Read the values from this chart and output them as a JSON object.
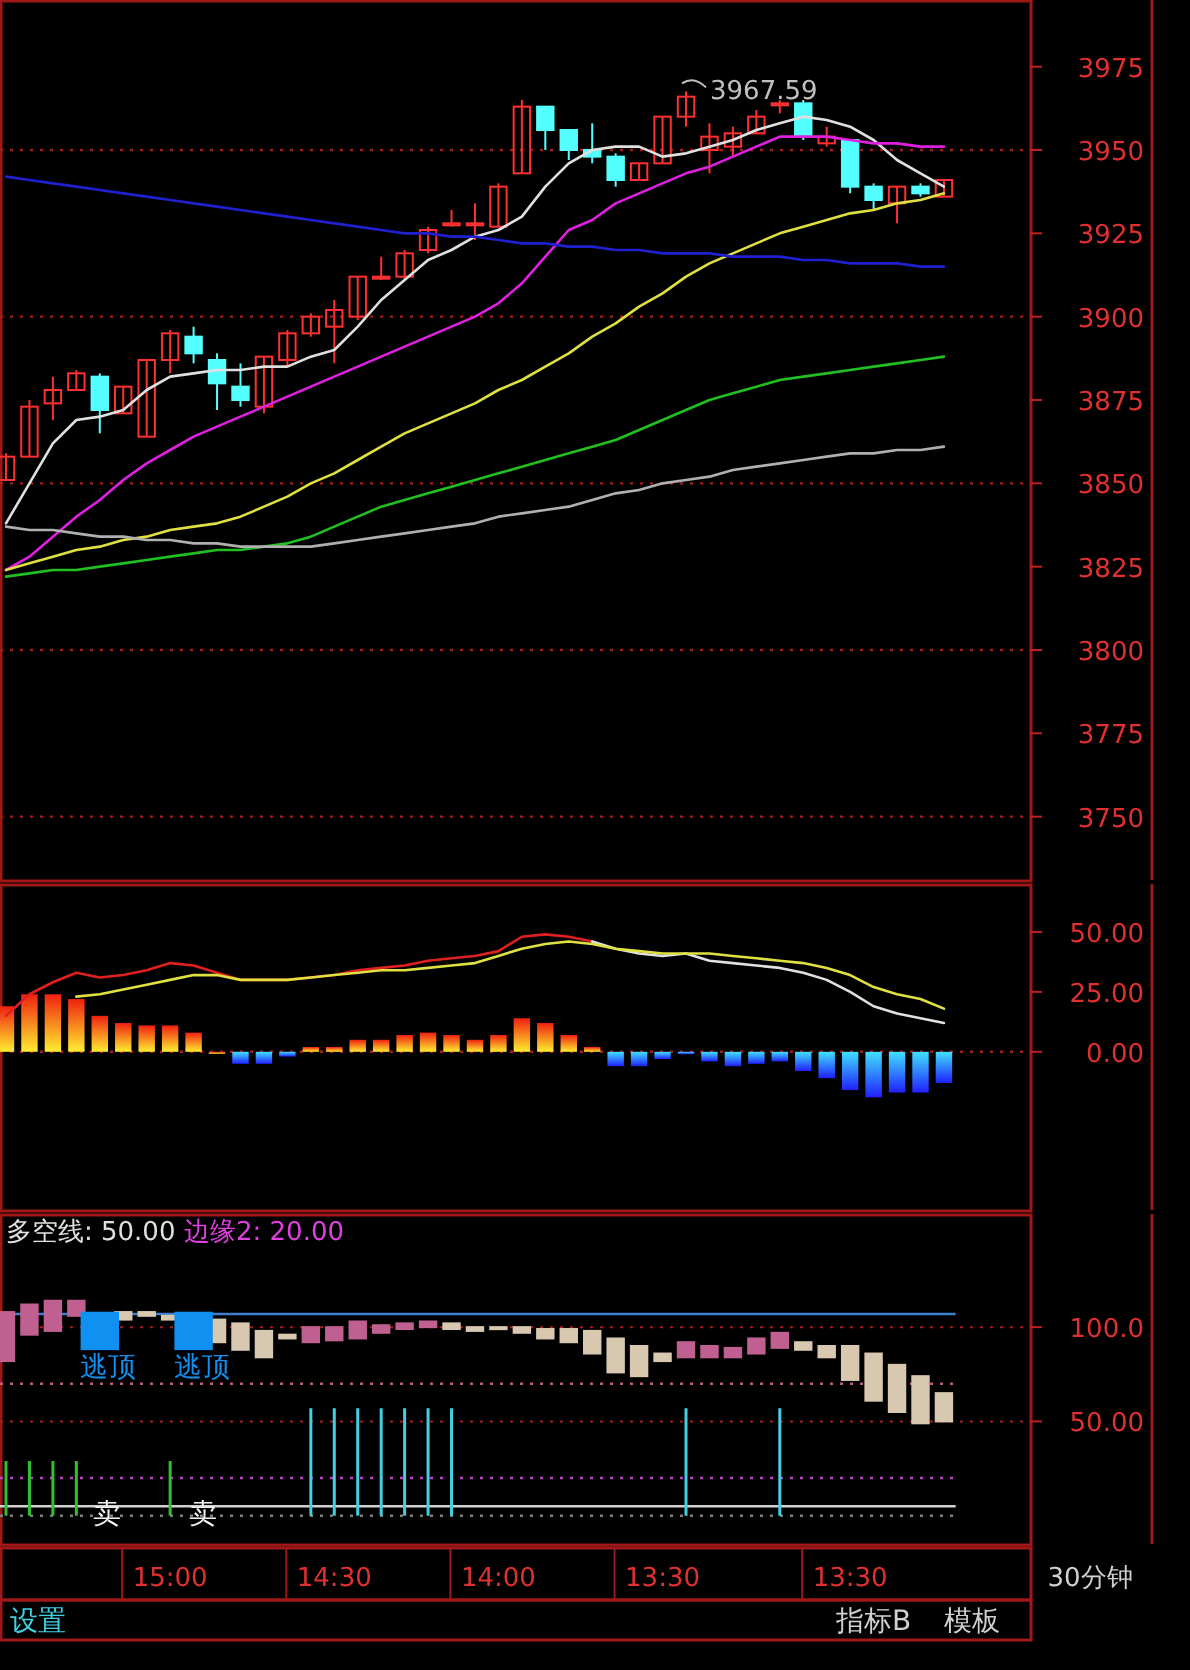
{
  "chart_data": [
    {
      "type": "candlestick",
      "tick_labels": "y",
      "grid": false,
      "categories": [
        null,
        null,
        null,
        null,
        null,
        null,
        null,
        null,
        null,
        null,
        null,
        null,
        null,
        null,
        null,
        null,
        null,
        null,
        null,
        null,
        null,
        null,
        null,
        null,
        null,
        null,
        null,
        null,
        null,
        null,
        null,
        null,
        null,
        null,
        null,
        null,
        null,
        null,
        null,
        null,
        null
      ],
      "ohlc": [
        [
          3851,
          3859,
          3851,
          3858
        ],
        [
          3858,
          3875,
          3858,
          3873
        ],
        [
          3874,
          3882,
          3869,
          3878
        ],
        [
          3878,
          3884,
          3878,
          3883
        ],
        [
          3882,
          3883,
          3865,
          3872
        ],
        [
          3871,
          3879,
          3871,
          3879
        ],
        [
          3864,
          3887,
          3864,
          3887
        ],
        [
          3887,
          3896,
          3883,
          3895
        ],
        [
          3894,
          3897,
          3886,
          3889
        ],
        [
          3887,
          3889,
          3872,
          3880
        ],
        [
          3879,
          3886,
          3873,
          3875
        ],
        [
          3873,
          3888,
          3871,
          3888
        ],
        [
          3887,
          3896,
          3885,
          3895
        ],
        [
          3895,
          3901,
          3894,
          3900
        ],
        [
          3897,
          3905,
          3886,
          3902
        ],
        [
          3900,
          3912,
          3899,
          3912
        ],
        [
          3912,
          3918,
          3911,
          3912
        ],
        [
          3912,
          3920,
          3911,
          3919
        ],
        [
          3920,
          3927,
          3919,
          3926
        ],
        [
          3928,
          3932,
          3927,
          3928
        ],
        [
          3928,
          3934,
          3923,
          3928
        ],
        [
          3927,
          3940,
          3927,
          3939
        ],
        [
          3943,
          3965,
          3943,
          3963
        ],
        [
          3963,
          3963,
          3950,
          3956
        ],
        [
          3956,
          3956,
          3947,
          3950
        ],
        [
          3950,
          3958,
          3946,
          3948
        ],
        [
          3948,
          3949,
          3939,
          3941
        ],
        [
          3941,
          3946,
          3941,
          3946
        ],
        [
          3946,
          3960,
          3946,
          3960
        ],
        [
          3960,
          3967.59,
          3957,
          3966
        ],
        [
          3950,
          3958,
          3943,
          3954
        ],
        [
          3951,
          3957,
          3948,
          3955
        ],
        [
          3955,
          3962,
          3955,
          3960
        ],
        [
          3964,
          3965,
          3961,
          3964
        ],
        [
          3964,
          3965,
          3953,
          3954
        ],
        [
          3952,
          3957,
          3951,
          3954
        ],
        [
          3953,
          3953,
          3937,
          3939
        ],
        [
          3939,
          3940,
          3932,
          3935
        ],
        [
          3934,
          3939,
          3928,
          3939
        ],
        [
          3939,
          3940,
          3936,
          3937
        ],
        [
          3936,
          3941,
          3936,
          3941
        ]
      ],
      "series": [
        {
          "type": "line",
          "color": "#e0e0e0",
          "values": [
            3838,
            3850,
            3862,
            3869,
            3870,
            3872,
            3878,
            3882,
            3883,
            3884,
            3884,
            3885,
            3885,
            3888,
            3890,
            3897,
            3905,
            3911,
            3917,
            3920,
            3924,
            3926,
            3930,
            3939,
            3946,
            3950,
            3951,
            3951,
            3948,
            3949,
            3951,
            3953,
            3956,
            3958,
            3960,
            3959,
            3957,
            3953,
            3947,
            3943,
            3939
          ]
        },
        {
          "type": "line",
          "color": "#e020e0",
          "values": [
            3824,
            3828,
            3834,
            3840,
            3845,
            3851,
            3856,
            3860,
            3864,
            3867,
            3870,
            3873,
            3876,
            3879,
            3882,
            3885,
            3888,
            3891,
            3894,
            3897,
            3900,
            3904,
            3910,
            3918,
            3926,
            3929,
            3934,
            3937,
            3940,
            3943,
            3945,
            3948,
            3951,
            3954,
            3954,
            3954,
            3953,
            3952,
            3952,
            3951,
            3951
          ]
        },
        {
          "type": "line",
          "color": "#e0e040",
          "values": [
            3824,
            3826,
            3828,
            3830,
            3831,
            3833,
            3834,
            3836,
            3837,
            3838,
            3840,
            3843,
            3846,
            3850,
            3853,
            3857,
            3861,
            3865,
            3868,
            3871,
            3874,
            3878,
            3881,
            3885,
            3889,
            3894,
            3898,
            3903,
            3907,
            3912,
            3916,
            3919,
            3922,
            3925,
            3927,
            3929,
            3931,
            3932,
            3934,
            3935,
            3937
          ]
        },
        {
          "type": "line",
          "color": "#20c020",
          "values": [
            3822,
            3823,
            3824,
            3824,
            3825,
            3826,
            3827,
            3828,
            3829,
            3830,
            3830,
            3831,
            3832,
            3834,
            3837,
            3840,
            3843,
            3845,
            3847,
            3849,
            3851,
            3853,
            3855,
            3857,
            3859,
            3861,
            3863,
            3866,
            3869,
            3872,
            3875,
            3877,
            3879,
            3881,
            3882,
            3883,
            3884,
            3885,
            3886,
            3887,
            3888
          ]
        },
        {
          "type": "line",
          "color": "#b0b0b0",
          "values": [
            3837,
            3836,
            3836,
            3835,
            3834,
            3834,
            3833,
            3833,
            3832,
            3832,
            3831,
            3831,
            3831,
            3831,
            3832,
            3833,
            3834,
            3835,
            3836,
            3837,
            3838,
            3840,
            3841,
            3842,
            3843,
            3845,
            3847,
            3848,
            3850,
            3851,
            3852,
            3854,
            3855,
            3856,
            3857,
            3858,
            3859,
            3859,
            3860,
            3860,
            3861
          ]
        },
        {
          "type": "line",
          "color": "#2020d0",
          "values": [
            3942,
            3941,
            3940,
            3939,
            3938,
            3937,
            3936,
            3935,
            3934,
            3933,
            3932,
            3931,
            3930,
            3929,
            3928,
            3927,
            3926,
            3925,
            3925,
            3924,
            3924,
            3923,
            3922,
            3922,
            3921,
            3921,
            3920,
            3920,
            3919,
            3919,
            3919,
            3918,
            3918,
            3918,
            3917,
            3917,
            3916,
            3916,
            3916,
            3915,
            3915
          ]
        }
      ],
      "ylim": [
        3731,
        3995
      ],
      "yticks": [
        3750,
        3775,
        3800,
        3825,
        3850,
        3875,
        3900,
        3925,
        3950,
        3975
      ],
      "ref_lines": [
        {
          "axis": "y",
          "value": 3750,
          "color": "#a02020",
          "line_style": "dotted"
        },
        {
          "axis": "y",
          "value": 3800,
          "color": "#a02020",
          "line_style": "dotted"
        },
        {
          "axis": "y",
          "value": 3850,
          "color": "#a02020",
          "line_style": "dotted"
        },
        {
          "axis": "y",
          "value": 3900,
          "color": "#a02020",
          "line_style": "dotted"
        },
        {
          "axis": "y",
          "value": 3950,
          "color": "#a02020",
          "line_style": "dotted"
        }
      ],
      "annotations": [
        "3967.59"
      ]
    },
    {
      "type": "bar",
      "tick_labels": "y",
      "grid": false,
      "categories": [
        null,
        null,
        null,
        null,
        null,
        null,
        null,
        null,
        null,
        null,
        null,
        null,
        null,
        null,
        null,
        null,
        null,
        null,
        null,
        null,
        null,
        null,
        null,
        null,
        null,
        null,
        null,
        null,
        null,
        null,
        null,
        null,
        null,
        null,
        null,
        null,
        null,
        null,
        null,
        null,
        null
      ],
      "values": [
        19,
        24,
        24,
        22,
        15,
        12,
        11,
        11,
        8,
        0,
        -5,
        -5,
        -2,
        2,
        2,
        5,
        5,
        7,
        8,
        7,
        5,
        7,
        14,
        12,
        7,
        2,
        -6,
        -6,
        -3,
        -1,
        -4,
        -6,
        -5,
        -4,
        -8,
        -11,
        -16,
        -19,
        -17,
        -17,
        -13
      ],
      "series": [
        {
          "type": "line",
          "color": "#e02020",
          "values": [
            15,
            24,
            29,
            33,
            31,
            32,
            34,
            37,
            36,
            33,
            30,
            30,
            30,
            31,
            32,
            34,
            35,
            36,
            38,
            39,
            40,
            42,
            48,
            49,
            48,
            46,
            null,
            null,
            null,
            null,
            null,
            null,
            null,
            null,
            null,
            null,
            null,
            null,
            null,
            null,
            null
          ]
        },
        {
          "type": "line",
          "color": "#e0e0e0",
          "values": [
            null,
            null,
            null,
            null,
            null,
            null,
            null,
            null,
            null,
            null,
            null,
            null,
            null,
            null,
            null,
            null,
            null,
            null,
            null,
            null,
            null,
            null,
            null,
            null,
            null,
            46,
            43,
            41,
            40,
            41,
            38,
            37,
            36,
            35,
            33,
            30,
            25,
            19,
            16,
            14,
            12
          ]
        },
        {
          "type": "line",
          "color": "#e0e040",
          "values": [
            null,
            null,
            null,
            23,
            24,
            26,
            28,
            30,
            32,
            32,
            30,
            30,
            30,
            31,
            32,
            33,
            34,
            34,
            35,
            36,
            37,
            40,
            43,
            45,
            46,
            45,
            43,
            42,
            41,
            41,
            41,
            40,
            39,
            38,
            37,
            35,
            32,
            27,
            24,
            22,
            18
          ]
        }
      ],
      "ylim": [
        -66,
        70
      ],
      "yticks": [
        {
          "value": 0,
          "label": "0.00"
        },
        {
          "value": 25,
          "label": "25.00"
        },
        {
          "value": 50,
          "label": "50.00"
        }
      ],
      "ref_lines": [
        {
          "axis": "y",
          "value": 0,
          "color": "#a02020",
          "line_style": "dotted"
        }
      ]
    },
    {
      "type": "candlestick",
      "grid": "y",
      "categories": [
        null,
        null,
        null,
        null,
        null,
        null,
        null,
        "15:00",
        null,
        null,
        null,
        null,
        null,
        null,
        "14:30",
        null,
        null,
        null,
        null,
        null,
        null,
        "14:00",
        null,
        null,
        null,
        null,
        null,
        null,
        "13:30",
        null,
        null,
        null,
        null,
        null,
        null,
        null,
        "13:30",
        null,
        null,
        null,
        null
      ],
      "ohlc": [
        [
          82,
          108,
          82,
          108
        ],
        [
          96,
          112,
          96,
          112
        ],
        [
          98,
          114,
          98,
          114
        ],
        [
          106,
          114,
          106,
          114
        ],
        null,
        [
          108,
          108,
          104,
          104
        ],
        [
          108,
          108,
          106,
          106
        ],
        [
          106,
          106,
          104,
          104
        ],
        null,
        [
          104,
          104,
          92,
          92
        ],
        [
          102,
          102,
          88,
          88
        ],
        [
          98,
          98,
          84,
          84
        ],
        [
          96,
          96,
          94,
          94
        ],
        [
          92,
          100,
          92,
          100
        ],
        [
          93,
          100,
          93,
          100
        ],
        [
          94,
          103,
          94,
          103
        ],
        [
          97,
          101,
          97,
          101
        ],
        [
          99,
          102,
          99,
          102
        ],
        [
          100,
          103,
          100,
          103
        ],
        [
          102,
          102,
          99,
          99
        ],
        [
          100,
          100,
          98,
          98
        ],
        [
          100,
          100,
          99,
          99
        ],
        [
          100,
          100,
          97,
          97
        ],
        [
          99,
          99,
          94,
          94
        ],
        [
          99,
          99,
          92,
          92
        ],
        [
          98,
          98,
          86,
          86
        ],
        [
          94,
          94,
          76,
          76
        ],
        [
          90,
          90,
          74,
          74
        ],
        [
          86,
          86,
          82,
          82
        ],
        [
          84,
          92,
          84,
          92
        ],
        [
          84,
          90,
          84,
          90
        ],
        [
          84,
          89,
          84,
          89
        ],
        [
          86,
          94,
          86,
          94
        ],
        [
          89,
          97,
          89,
          97
        ],
        [
          92,
          92,
          88,
          88
        ],
        [
          90,
          90,
          84,
          84
        ],
        [
          90,
          90,
          72,
          72
        ],
        [
          86,
          86,
          61,
          61
        ],
        [
          80,
          80,
          55,
          55
        ],
        [
          74,
          74,
          49,
          49
        ],
        [
          65,
          65,
          50,
          50
        ]
      ],
      "series": [
        {
          "type": "bar",
          "color": "#40d0e0",
          "values": [
            null,
            null,
            null,
            null,
            null,
            null,
            null,
            null,
            null,
            null,
            null,
            null,
            null,
            57,
            57,
            57,
            57,
            57,
            57,
            57,
            null,
            null,
            null,
            null,
            null,
            null,
            null,
            null,
            null,
            57,
            null,
            null,
            null,
            57,
            null,
            null,
            null,
            null,
            null,
            null,
            null
          ]
        },
        {
          "type": "bar",
          "color": "#30c030",
          "values": [
            29,
            29,
            29,
            29,
            null,
            null,
            null,
            29,
            null,
            null,
            null,
            null,
            null,
            null,
            null,
            null,
            null,
            null,
            null,
            null,
            null,
            null,
            null,
            null,
            null,
            null,
            null,
            null,
            null,
            null,
            null,
            null,
            null,
            null,
            null,
            null,
            null,
            null,
            null,
            null,
            null
          ]
        },
        {
          "type": "scatter",
          "color": "#1090f0",
          "marker": "square",
          "values": [
            null,
            null,
            null,
            null,
            98,
            null,
            null,
            null,
            98,
            null,
            null,
            null,
            null,
            null,
            null,
            null,
            null,
            null,
            null,
            null,
            null,
            null,
            null,
            null,
            null,
            null,
            null,
            null,
            null,
            null,
            null,
            null,
            null,
            null,
            null,
            null,
            null,
            null,
            null,
            null,
            null
          ],
          "value_labels": [
            null,
            null,
            null,
            null,
            "逃顶",
            null,
            null,
            null,
            "逃顶",
            null,
            null,
            null,
            null,
            null,
            null,
            null,
            null,
            null,
            null,
            null,
            null,
            null,
            null,
            null,
            null,
            null,
            null,
            null,
            null,
            null,
            null,
            null,
            null,
            null,
            null,
            null,
            null,
            null,
            null,
            null,
            null
          ]
        }
      ],
      "ylim": [
        -15,
        160
      ],
      "yticks": [
        {
          "value": 50,
          "label": "50.00"
        },
        {
          "value": 100,
          "label": "100.0"
        }
      ],
      "ref_lines": [
        {
          "axis": "y",
          "value": 107,
          "color": "#4080d0",
          "line_style": "solid"
        },
        {
          "axis": "y",
          "value": 70,
          "color": "#c06080",
          "line_style": "dotted"
        },
        {
          "axis": "y",
          "value": 20,
          "color": "#c040c0",
          "line_style": "dotted"
        },
        {
          "axis": "y",
          "value": 5,
          "color": "#d0d0d0",
          "line_style": "solid"
        },
        {
          "axis": "y",
          "value": 0,
          "color": "#808080",
          "line_style": "dotted"
        }
      ],
      "annotations": [
        "多空线: 50.00",
        "边缘2: 20.00",
        "设置",
        "指标B",
        "模板",
        "30分钟",
        "卖",
        "卖"
      ]
    }
  ]
}
